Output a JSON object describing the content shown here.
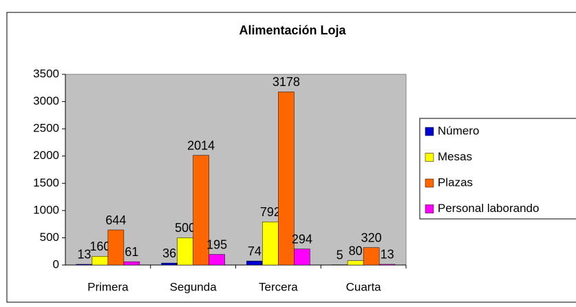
{
  "chart_data": {
    "type": "bar",
    "title": "Alimentación Loja",
    "categories": [
      "Primera",
      "Segunda",
      "Tercera",
      "Cuarta"
    ],
    "series": [
      {
        "name": "Número",
        "color": "#0000cc",
        "values": [
          13,
          36,
          74,
          5
        ]
      },
      {
        "name": "Mesas",
        "color": "#ffff00",
        "values": [
          160,
          500,
          792,
          80
        ]
      },
      {
        "name": "Plazas",
        "color": "#ff6600",
        "values": [
          644,
          2014,
          3178,
          320
        ]
      },
      {
        "name": "Personal laborando",
        "color": "#ff00ff",
        "values": [
          61,
          195,
          294,
          13
        ]
      }
    ],
    "ylim": [
      0,
      3500
    ],
    "yticks": [
      0,
      500,
      1000,
      1500,
      2000,
      2500,
      3000,
      3500
    ],
    "grid": false,
    "legend": "right"
  }
}
